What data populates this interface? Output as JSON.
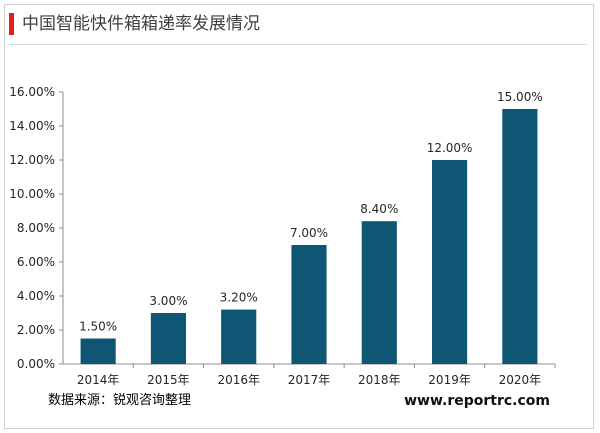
{
  "title": "中国智能快件箱箱递率发展情况",
  "footer": {
    "source": "数据来源：锐观咨询整理",
    "website": "www.reportrc.com"
  },
  "colors": {
    "bar": "#0e5673",
    "title_accent": "#e02020"
  },
  "chart_data": {
    "type": "bar",
    "categories": [
      "2014年",
      "2015年",
      "2016年",
      "2017年",
      "2018年",
      "2019年",
      "2020年"
    ],
    "values": [
      1.5,
      3.0,
      3.2,
      7.0,
      8.4,
      12.0,
      15.0
    ],
    "value_labels": [
      "1.50%",
      "3.00%",
      "3.20%",
      "7.00%",
      "8.40%",
      "12.00%",
      "15.00%"
    ],
    "ylim": [
      0,
      16
    ],
    "yticks": [
      0,
      2,
      4,
      6,
      8,
      10,
      12,
      14,
      16
    ],
    "ytick_labels": [
      "0.00%",
      "2.00%",
      "4.00%",
      "6.00%",
      "8.00%",
      "10.00%",
      "12.00%",
      "14.00%",
      "16.00%"
    ],
    "xlabel": "",
    "ylabel": "",
    "grid": false,
    "legend": "none"
  }
}
